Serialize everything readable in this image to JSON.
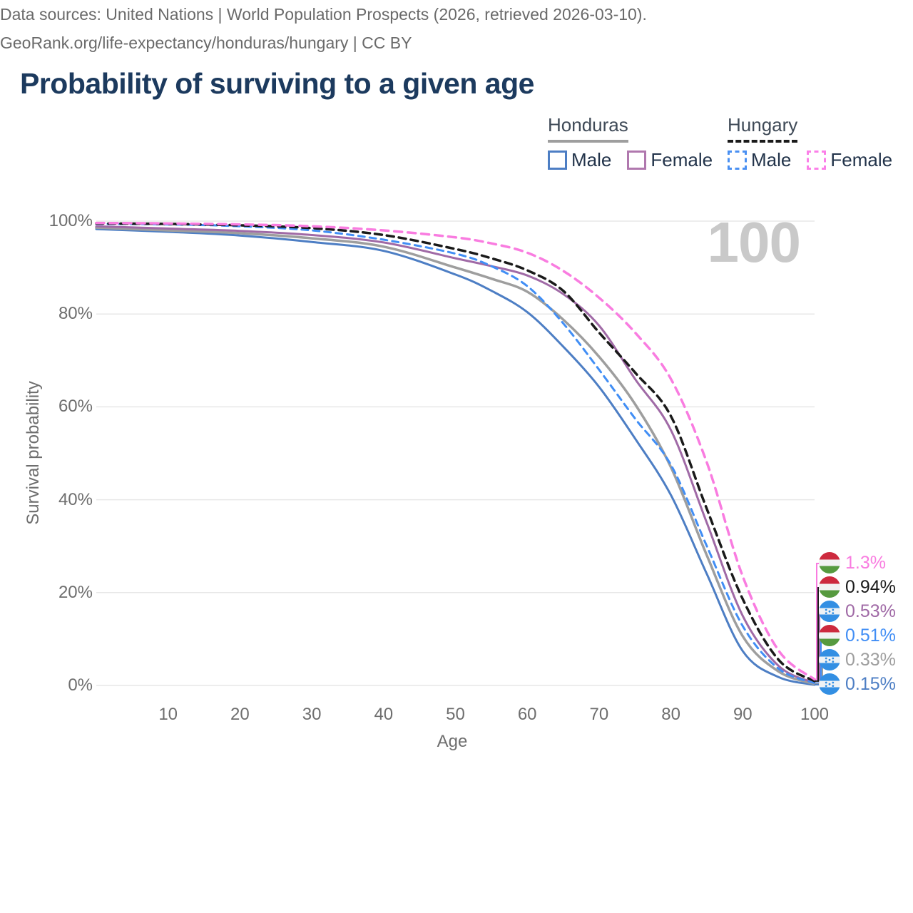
{
  "header": {
    "title": "Probability of surviving to a given age"
  },
  "watermark": "100",
  "legend": {
    "groups": [
      {
        "country": "Honduras",
        "line_style": "solid",
        "underline_color": "#9e9e9e",
        "items": [
          {
            "label": "Male",
            "color": "#4d7ec4",
            "dashed": false
          },
          {
            "label": "Female",
            "color": "#b078ae",
            "dashed": false
          }
        ]
      },
      {
        "country": "Hungary",
        "line_style": "dashed",
        "underline_color": "#1a1a1a",
        "items": [
          {
            "label": "Male",
            "color": "#4a90f2",
            "dashed": true
          },
          {
            "label": "Female",
            "color": "#fb80e8",
            "dashed": true
          }
        ]
      }
    ]
  },
  "axes": {
    "x_label": "Age",
    "y_label": "Survival probability",
    "x_ticks": [
      10,
      20,
      30,
      40,
      50,
      60,
      70,
      80,
      90,
      100
    ],
    "y_ticks": [
      {
        "value": 0,
        "label": "0%"
      },
      {
        "value": 20,
        "label": "20%"
      },
      {
        "value": 40,
        "label": "40%"
      },
      {
        "value": 60,
        "label": "60%"
      },
      {
        "value": 80,
        "label": "80%"
      },
      {
        "value": 100,
        "label": "100%"
      }
    ]
  },
  "chart_data": {
    "type": "line",
    "title": "Probability of surviving to a given age",
    "xlabel": "Age",
    "ylabel": "Survival probability",
    "xlim": [
      0,
      100
    ],
    "ylim": [
      0,
      100
    ],
    "grid": "horizontal",
    "x": [
      0,
      10,
      20,
      30,
      40,
      50,
      55,
      60,
      65,
      70,
      75,
      80,
      85,
      90,
      95,
      100
    ],
    "series": [
      {
        "id": "honduras-male",
        "country": "Honduras",
        "sex": "Male",
        "style": "solid",
        "color": "#4d7ec4",
        "width": 3,
        "values": [
          98.3,
          97.7,
          96.9,
          95.5,
          93.6,
          88.5,
          85.0,
          80.4,
          73.0,
          64.3,
          53.2,
          41.0,
          24.0,
          7.4,
          1.8,
          0.15
        ],
        "end_label": "0.15%",
        "flag": "honduras"
      },
      {
        "id": "honduras-total",
        "country": "Honduras",
        "sex": "Both",
        "style": "solid",
        "color": "#9e9e9e",
        "width": 3.5,
        "values": [
          98.6,
          98.0,
          97.4,
          96.3,
          94.5,
          90.0,
          87.6,
          84.8,
          78.8,
          70.8,
          60.6,
          47.0,
          28.0,
          10.6,
          3.0,
          0.33
        ],
        "end_label": "0.33%",
        "flag": "honduras"
      },
      {
        "id": "honduras-female",
        "country": "Honduras",
        "sex": "Female",
        "style": "solid",
        "color": "#a06aa6",
        "width": 3,
        "values": [
          98.9,
          98.4,
          97.9,
          97.0,
          95.4,
          92.0,
          90.3,
          88.3,
          84.3,
          77.5,
          66.0,
          55.0,
          35.0,
          15.0,
          4.2,
          0.53
        ],
        "end_label": "0.53%",
        "flag": "honduras"
      },
      {
        "id": "hungary-male",
        "country": "Hungary",
        "sex": "Male",
        "style": "dashed",
        "color": "#418ef5",
        "width": 3,
        "dash": "9 7",
        "values": [
          99.4,
          99.3,
          98.9,
          98.0,
          96.0,
          93.0,
          90.3,
          86.0,
          78.0,
          68.0,
          57.5,
          47.5,
          30.0,
          12.8,
          3.6,
          0.51
        ],
        "end_label": "0.51%",
        "flag": "hungary"
      },
      {
        "id": "hungary-total",
        "country": "Hungary",
        "sex": "Both",
        "style": "dashed",
        "color": "#1a1a1a",
        "width": 3.5,
        "dash": "10 7",
        "values": [
          99.5,
          99.4,
          99.1,
          98.5,
          97.0,
          94.0,
          92.0,
          89.4,
          85.0,
          76.0,
          67.4,
          58.0,
          38.0,
          18.6,
          5.5,
          0.94
        ],
        "end_label": "0.94%",
        "flag": "hungary"
      },
      {
        "id": "hungary-female",
        "country": "Hungary",
        "sex": "Female",
        "style": "dashed",
        "color": "#f97ce0",
        "width": 3.5,
        "dash": "11 8",
        "values": [
          99.6,
          99.5,
          99.3,
          98.9,
          98.0,
          96.5,
          95.2,
          93.2,
          89.3,
          83.5,
          76.0,
          66.0,
          48.0,
          23.5,
          7.5,
          1.3
        ],
        "end_label": "1.3%",
        "flag": "hungary"
      }
    ],
    "flag_colors": {
      "hungary": {
        "top": "#cd2a3e",
        "middle": "#f2f2f2",
        "bottom": "#569a3f"
      },
      "honduras": {
        "top": "#338fe3",
        "middle": "#eef2f5",
        "bottom": "#338fe3",
        "stars": "#338fe3"
      }
    }
  },
  "footer": {
    "line1": "Data sources: United Nations | World Population Prospects (2026, retrieved 2026-03-10).",
    "line2": "GeoRank.org/life-expectancy/honduras/hungary | CC BY"
  }
}
